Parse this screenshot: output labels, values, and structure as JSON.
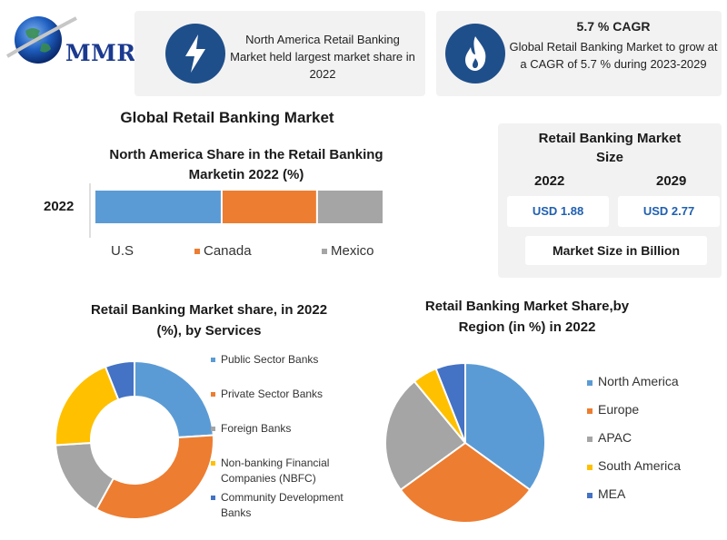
{
  "logo": {
    "text": "MMR"
  },
  "info_cards": [
    {
      "icon": "lightning-icon",
      "text": "North America Retail Banking Market held largest market share in 2022"
    },
    {
      "icon": "flame-icon",
      "heading": "5.7 % CAGR",
      "text": "Global Retail Banking Market to grow at a CAGR of 5.7 % during 2023-2029"
    }
  ],
  "main_title": "Global Retail Banking Market",
  "market_size": {
    "title": "Retail Banking Market Size",
    "years": [
      "2022",
      "2029"
    ],
    "values": [
      "USD 1.88",
      "USD 2.77"
    ],
    "caption": "Market Size in Billion"
  },
  "colors": {
    "blue": "#5b9bd5",
    "orange": "#ed7d31",
    "gray": "#a5a5a5",
    "yellow": "#ffc000",
    "navy": "#4472c4",
    "badge": "#1f4f8a"
  },
  "chart_data": [
    {
      "type": "bar",
      "orientation": "horizontal-stacked",
      "title": "North America Share in the Retail Banking Marketin 2022 (%)",
      "categories": [
        "2022"
      ],
      "series": [
        {
          "name": "U.S",
          "values": [
            44
          ]
        },
        {
          "name": "Canada",
          "values": [
            33
          ]
        },
        {
          "name": "Mexico",
          "values": [
            23
          ]
        }
      ],
      "legend": "bottom"
    },
    {
      "type": "pie",
      "variant": "donut",
      "title": "Retail Banking Market share, in 2022 (%), by Services",
      "categories": [
        "Public Sector Banks",
        "Private Sector Banks",
        "Foreign Banks",
        "Non-banking Financial Companies (NBFC)",
        "Community Development Banks"
      ],
      "values": [
        24,
        34,
        16,
        20,
        6
      ],
      "legend": "right"
    },
    {
      "type": "pie",
      "title": "Retail Banking Market Share,by Region (in %) in 2022",
      "categories": [
        "North America",
        "Europe",
        "APAC",
        "South America",
        "MEA"
      ],
      "values": [
        35,
        30,
        24,
        5,
        6
      ],
      "legend": "right"
    }
  ]
}
